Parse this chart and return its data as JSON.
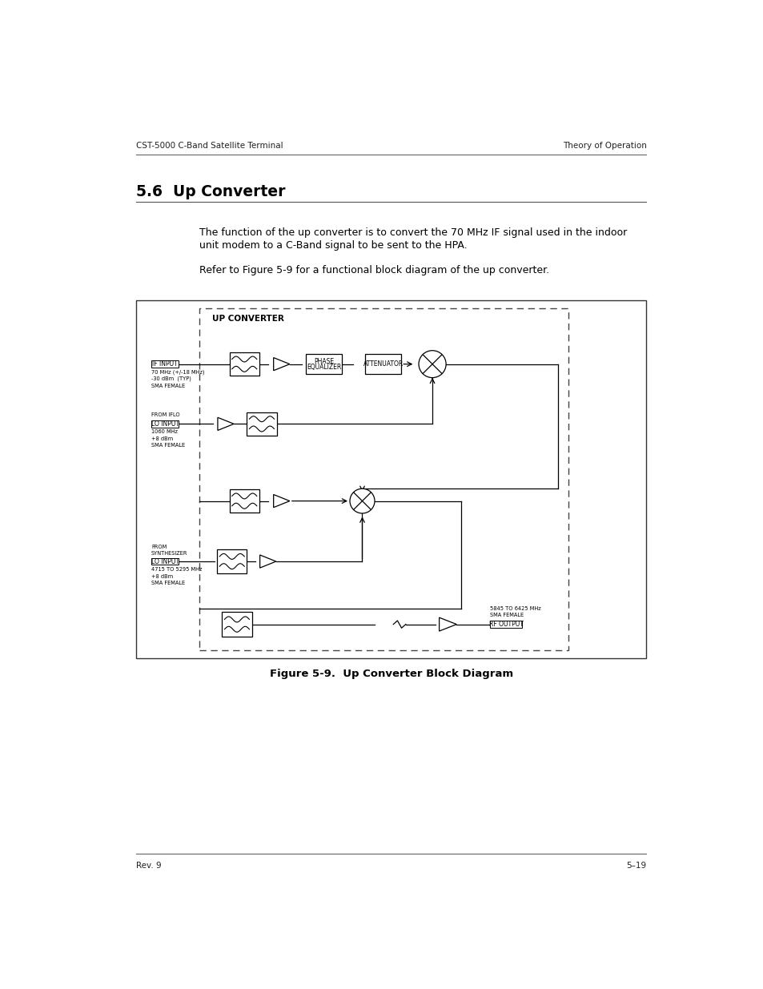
{
  "header_left": "CST-5000 C-Band Satellite Terminal",
  "header_right": "Theory of Operation",
  "footer_left": "Rev. 9",
  "footer_right": "5–19",
  "section_title": "5.6  Up Converter",
  "body_text1": "The function of the up converter is to convert the 70 MHz IF signal used in the indoor\nunit modem to a C-Band signal to be sent to the HPA.",
  "body_text2": "Refer to Figure 5-9 for a functional block diagram of the up converter.",
  "figure_caption": "Figure 5-9.  Up Converter Block Diagram",
  "diagram_title": "UP CONVERTER",
  "bg_color": "#ffffff",
  "text_color": "#000000"
}
